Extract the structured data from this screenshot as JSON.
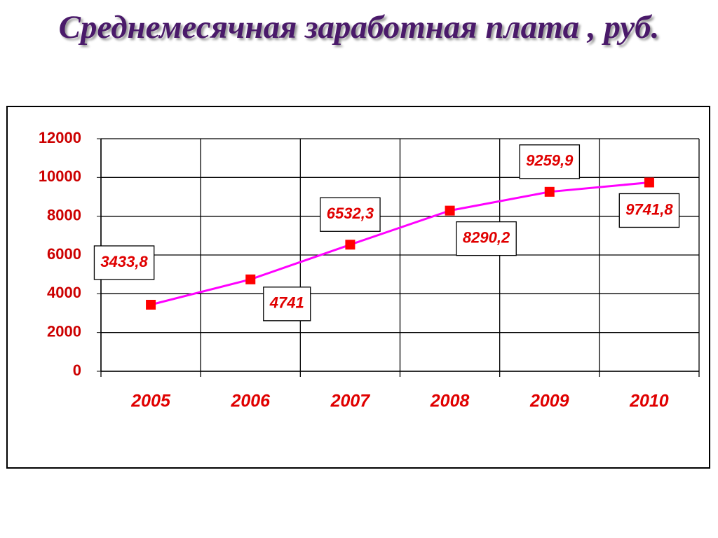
{
  "chart_data": {
    "type": "line",
    "title": "Среднемесячная заработная плата , руб.",
    "categories": [
      "2005",
      "2006",
      "2007",
      "2008",
      "2009",
      "2010"
    ],
    "values": [
      3433.8,
      4741,
      6532.3,
      8290.2,
      9259.9,
      9741.8
    ],
    "value_labels": [
      "3433,8",
      "4741",
      "6532,3",
      "8290,2",
      "9259,9",
      "9741,8"
    ],
    "color": "#ff00ff",
    "marker_color": "#ff0000",
    "ylim": [
      0,
      12000
    ],
    "yticks": [
      0,
      2000,
      4000,
      6000,
      8000,
      10000,
      12000
    ],
    "grid": true
  }
}
